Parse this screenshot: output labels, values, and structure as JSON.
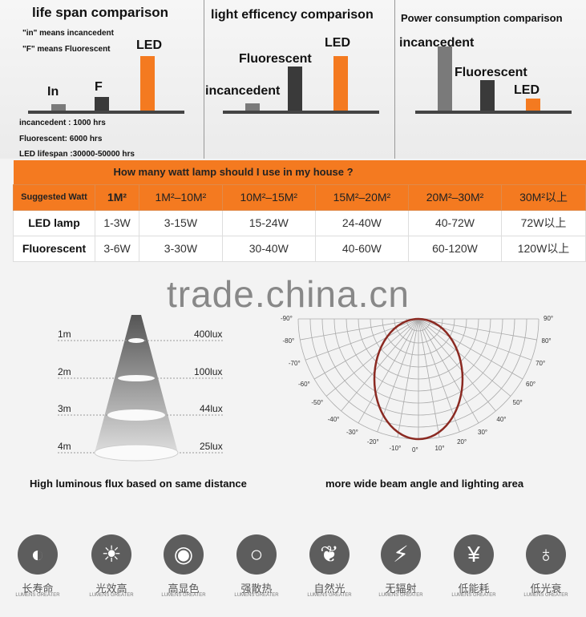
{
  "lifespan": {
    "title": "life span comparison",
    "note1": "\"in\" means incancedent",
    "note2": "\"F\" means Fluorescent",
    "labels": [
      "In",
      "F",
      "LED"
    ],
    "facts": [
      "incancedent : 1000 hrs",
      "Fluorescent: 6000 hrs",
      "LED lifespan :30000-50000 hrs"
    ]
  },
  "efficiency": {
    "title": "light efficency comparison",
    "labels": [
      "incancedent",
      "Fluorescent",
      "LED"
    ]
  },
  "power": {
    "title": "Power consumption comparison",
    "labels": [
      "incancedent",
      "Fluorescent",
      "LED"
    ]
  },
  "colors": {
    "incandescent": "#7a7a7a",
    "fluorescent": "#3a3a3a",
    "led": "#f47a20"
  },
  "table": {
    "title": "How many watt lamp should I use in my house ?",
    "header": [
      "Suggested Watt",
      "1M²",
      "1M²–10M²",
      "10M²–15M²",
      "15M²–20M²",
      "20M²–30M²",
      "30M²以上"
    ],
    "rows": [
      [
        "LED lamp",
        "1-3W",
        "3-15W",
        "15-24W",
        "24-40W",
        "40-72W",
        "72W以上"
      ],
      [
        "Fluorescent",
        "3-6W",
        "3-30W",
        "30-40W",
        "40-60W",
        "60-120W",
        "120W以上"
      ]
    ]
  },
  "watermark": "trade.china.cn",
  "lux": {
    "distances": [
      "1m",
      "2m",
      "3m",
      "4m"
    ],
    "values": [
      "400lux",
      "100lux",
      "44lux",
      "25lux"
    ],
    "caption": "High luminous flux based on same distance"
  },
  "beam": {
    "angles_left": [
      "90°",
      "80°",
      "70°",
      "60°",
      "50°",
      "40°",
      "30°",
      "20°",
      "10°",
      "0°"
    ],
    "angles_right": [
      "-10°",
      "-20°",
      "-30°",
      "-40°",
      "-50°",
      "-60°",
      "-70°",
      "-80°",
      "-90°"
    ],
    "caption": "more wide beam angle and lighting area"
  },
  "features": [
    {
      "label": "长寿命",
      "sub": "LUMENS GREATER",
      "icon": "yin-yang-icon"
    },
    {
      "label": "光效高",
      "sub": "LUMENS GREATER",
      "icon": "sun-icon"
    },
    {
      "label": "高显色",
      "sub": "LUMENS GREATER",
      "icon": "eye-icon"
    },
    {
      "label": "强散热",
      "sub": "LUMENS GREATER",
      "icon": "ring-icon"
    },
    {
      "label": "自然光",
      "sub": "LUMENS GREATER",
      "icon": "leaf-icon"
    },
    {
      "label": "无辐射",
      "sub": "LUMENS GREATER",
      "icon": "lightning-icon"
    },
    {
      "label": "低能耗",
      "sub": "LUMENS GREATER",
      "icon": "yen-icon"
    },
    {
      "label": "低光衰",
      "sub": "LUMENS GREATER",
      "icon": "bulb-icon"
    }
  ]
}
